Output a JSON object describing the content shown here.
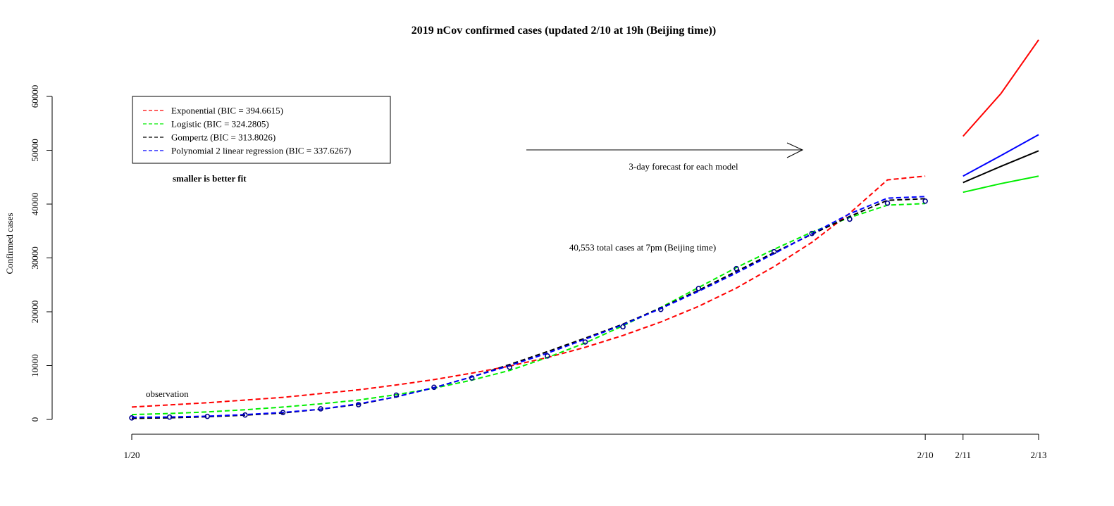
{
  "chart_data": {
    "type": "line",
    "title": "2019 nCov confirmed cases (updated 2/10 at 19h (Beijing time))",
    "ylabel": "Confirmed cases",
    "xlabel": "",
    "ylim": [
      0,
      60000
    ],
    "yticks": [
      0,
      10000,
      20000,
      30000,
      40000,
      50000,
      60000
    ],
    "xticks": [
      {
        "day": 0,
        "label": "1/20"
      },
      {
        "day": 21,
        "label": "2/10"
      },
      {
        "day": 22,
        "label": "2/11"
      },
      {
        "day": 24,
        "label": "2/13"
      }
    ],
    "x_days": [
      0,
      1,
      2,
      3,
      4,
      5,
      6,
      7,
      8,
      9,
      10,
      11,
      12,
      13,
      14,
      15,
      16,
      17,
      18,
      19,
      20,
      21
    ],
    "observations": [
      291,
      440,
      571,
      830,
      1287,
      1975,
      2744,
      4515,
      5974,
      7711,
      9692,
      11791,
      14380,
      17205,
      20438,
      24324,
      28018,
      31161,
      34546,
      37198,
      40171,
      40553
    ],
    "series": [
      {
        "name": "Exponential",
        "color": "#ff0000",
        "fit": [
          2300,
          2700,
          3100,
          3600,
          4100,
          4800,
          5500,
          6400,
          7400,
          8600,
          9900,
          11500,
          13400,
          15600,
          18100,
          21000,
          24400,
          28400,
          32900,
          38300,
          44500,
          45200
        ],
        "forecast": [
          52600,
          60500,
          70500
        ]
      },
      {
        "name": "Logistic",
        "color": "#00ee00",
        "fit": [
          900,
          1100,
          1400,
          1800,
          2300,
          2900,
          3600,
          4600,
          5800,
          7300,
          9100,
          11500,
          14200,
          17400,
          20800,
          24500,
          28200,
          31600,
          34800,
          37500,
          39800,
          40100
        ],
        "forecast": [
          42200,
          43800,
          45200
        ]
      },
      {
        "name": "Gompertz",
        "color": "#000000",
        "fit": [
          200,
          300,
          500,
          800,
          1200,
          1900,
          2800,
          4200,
          5900,
          7900,
          10200,
          12600,
          15100,
          17700,
          20700,
          24000,
          27500,
          31000,
          34400,
          37700,
          40700,
          41000
        ],
        "forecast": [
          44000,
          47000,
          49900
        ]
      },
      {
        "name": "Polynomial 2 linear regression",
        "color": "#0000ff",
        "fit": [
          400,
          450,
          600,
          900,
          1300,
          1900,
          2900,
          4200,
          5900,
          7900,
          10000,
          12300,
          14900,
          17600,
          20600,
          23800,
          27200,
          30800,
          34500,
          38200,
          41100,
          41400
        ],
        "forecast": [
          45200,
          49000,
          52900
        ]
      }
    ],
    "legend": {
      "entries": [
        {
          "label": "Exponential (BIC = 394.6615)",
          "color": "#ff0000"
        },
        {
          "label": "Logistic (BIC =  324.2805)",
          "color": "#00ee00"
        },
        {
          "label": "Gompertz (BIC = 313.8026)",
          "color": "#000000"
        },
        {
          "label": "Polynomial 2 linear regression  (BIC =  337.6267)",
          "color": "#0000ff"
        }
      ],
      "placement": "top-left"
    },
    "annotations": {
      "bic_note": "smaller is better fit",
      "forecast_note": "3-day forecast for each model",
      "total_note": "40,553 total cases at 7pm (Beijing time)",
      "observation_note": "observation"
    },
    "grid": false
  }
}
